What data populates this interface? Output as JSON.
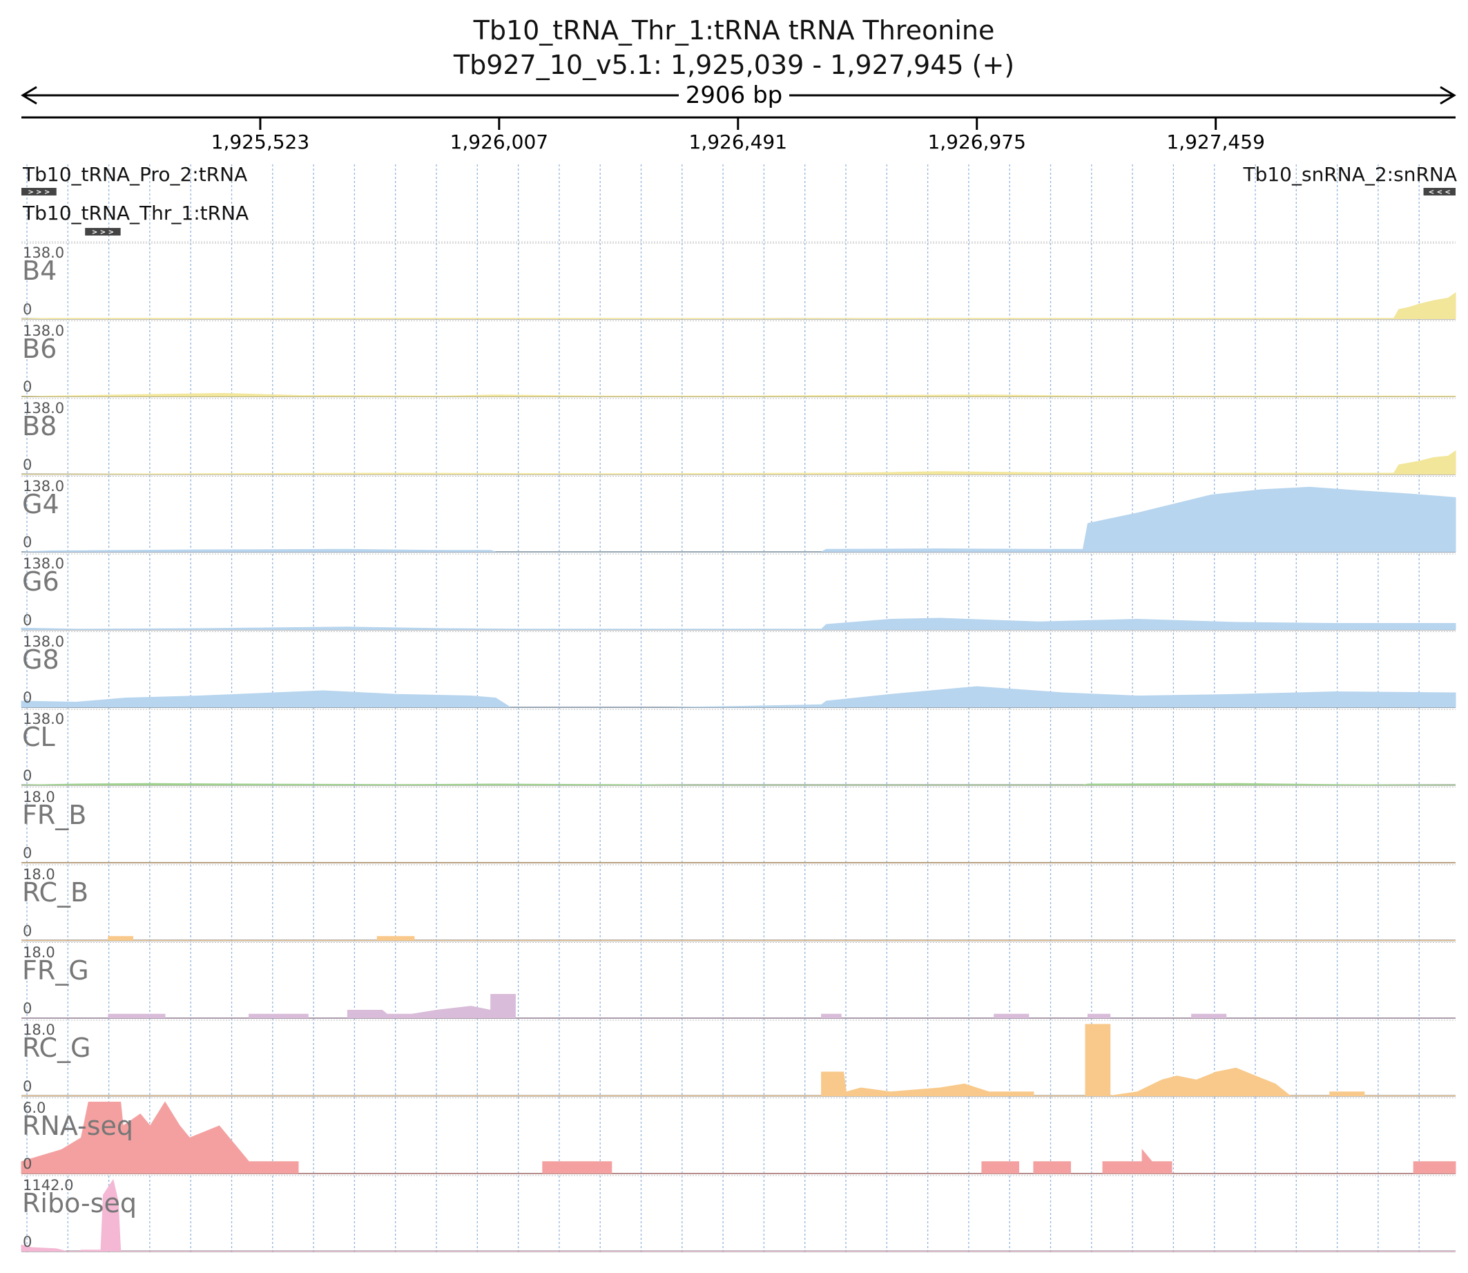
{
  "chart_data": {
    "type": "area",
    "title": "Tb10_tRNA_Thr_1:tRNA  tRNA Threonine",
    "subtitle": "Tb927_10_v5.1: 1,925,039 - 1,927,945 (+)",
    "span_label": "2906 bp",
    "xlim": [
      1925039,
      1927945
    ],
    "x_ticks": [
      "1,925,523",
      "1,926,007",
      "1,926,491",
      "1,926,975",
      "1,927,459"
    ],
    "x_tick_values": [
      1925523,
      1926007,
      1926491,
      1926975,
      1927459
    ],
    "grid": true,
    "features": [
      {
        "label": "Tb10_tRNA_Pro_2:tRNA",
        "start": 1925039,
        "end": 1925110,
        "strand": "+",
        "arrows": "> > >"
      },
      {
        "label": "Tb10_snRNA_2:snRNA",
        "start": 1927880,
        "end": 1927945,
        "strand": "-",
        "arrows": "< < <"
      },
      {
        "label": "Tb10_tRNA_Thr_1:tRNA",
        "start": 1925168,
        "end": 1925240,
        "strand": "+",
        "arrows": "> > >"
      }
    ],
    "tracks": [
      {
        "name": "B4",
        "max_label": "138.0",
        "min_label": "0",
        "ymax": 138,
        "color": "#f2e69a",
        "points": [
          [
            1925039,
            0
          ],
          [
            1925100,
            1
          ],
          [
            1925400,
            1
          ],
          [
            1925800,
            1
          ],
          [
            1926200,
            1
          ],
          [
            1926600,
            0.5
          ],
          [
            1927000,
            1
          ],
          [
            1927400,
            1
          ],
          [
            1927820,
            1
          ],
          [
            1927830,
            18
          ],
          [
            1927850,
            22
          ],
          [
            1927870,
            28
          ],
          [
            1927900,
            35
          ],
          [
            1927930,
            40
          ],
          [
            1927945,
            50
          ]
        ]
      },
      {
        "name": "B6",
        "max_label": "138.0",
        "min_label": "0",
        "ymax": 138,
        "color": "#f2e69a",
        "points": [
          [
            1925039,
            0
          ],
          [
            1925100,
            1
          ],
          [
            1925300,
            4
          ],
          [
            1925450,
            6
          ],
          [
            1925600,
            2
          ],
          [
            1925900,
            1
          ],
          [
            1926000,
            3
          ],
          [
            1926200,
            1
          ],
          [
            1926500,
            1
          ],
          [
            1926700,
            2
          ],
          [
            1927000,
            3
          ],
          [
            1927200,
            1
          ],
          [
            1927500,
            1
          ],
          [
            1927945,
            1
          ]
        ]
      },
      {
        "name": "B8",
        "max_label": "138.0",
        "min_label": "0",
        "ymax": 138,
        "color": "#f2e69a",
        "points": [
          [
            1925039,
            0
          ],
          [
            1925400,
            1
          ],
          [
            1925800,
            2
          ],
          [
            1926200,
            1
          ],
          [
            1926700,
            2
          ],
          [
            1926900,
            5
          ],
          [
            1927100,
            3
          ],
          [
            1927400,
            2
          ],
          [
            1927820,
            2
          ],
          [
            1927830,
            18
          ],
          [
            1927870,
            25
          ],
          [
            1927900,
            32
          ],
          [
            1927930,
            35
          ],
          [
            1927945,
            45
          ]
        ]
      },
      {
        "name": "G4",
        "max_label": "138.0",
        "min_label": "0",
        "ymax": 138,
        "color": "#b7d5ee",
        "points": [
          [
            1925039,
            0
          ],
          [
            1925100,
            2
          ],
          [
            1925400,
            4
          ],
          [
            1925700,
            5
          ],
          [
            1925900,
            3
          ],
          [
            1925990,
            3
          ],
          [
            1926000,
            0
          ],
          [
            1926660,
            0
          ],
          [
            1926670,
            5
          ],
          [
            1926900,
            6
          ],
          [
            1927100,
            5
          ],
          [
            1927190,
            5
          ],
          [
            1927200,
            55
          ],
          [
            1927300,
            75
          ],
          [
            1927450,
            110
          ],
          [
            1927550,
            120
          ],
          [
            1927650,
            125
          ],
          [
            1927750,
            118
          ],
          [
            1927850,
            112
          ],
          [
            1927945,
            105
          ]
        ]
      },
      {
        "name": "G6",
        "max_label": "138.0",
        "min_label": "0",
        "ymax": 138,
        "color": "#b7d5ee",
        "points": [
          [
            1925039,
            3
          ],
          [
            1925150,
            1
          ],
          [
            1925400,
            2
          ],
          [
            1925700,
            5
          ],
          [
            1925900,
            2
          ],
          [
            1926050,
            1
          ],
          [
            1926660,
            1
          ],
          [
            1926670,
            10
          ],
          [
            1926800,
            20
          ],
          [
            1926900,
            22
          ],
          [
            1927100,
            15
          ],
          [
            1927300,
            20
          ],
          [
            1927500,
            14
          ],
          [
            1927700,
            12
          ],
          [
            1927945,
            12
          ]
        ]
      },
      {
        "name": "G8",
        "max_label": "138.0",
        "min_label": "0",
        "ymax": 138,
        "color": "#b7d5ee",
        "points": [
          [
            1925039,
            12
          ],
          [
            1925150,
            10
          ],
          [
            1925250,
            18
          ],
          [
            1925400,
            22
          ],
          [
            1925600,
            30
          ],
          [
            1925650,
            32
          ],
          [
            1925800,
            25
          ],
          [
            1925950,
            22
          ],
          [
            1926000,
            18
          ],
          [
            1926030,
            0
          ],
          [
            1926350,
            0
          ],
          [
            1926500,
            2
          ],
          [
            1926660,
            5
          ],
          [
            1926670,
            12
          ],
          [
            1926800,
            25
          ],
          [
            1926975,
            40
          ],
          [
            1927150,
            28
          ],
          [
            1927300,
            22
          ],
          [
            1927500,
            25
          ],
          [
            1927700,
            30
          ],
          [
            1927945,
            28
          ]
        ]
      },
      {
        "name": "CL",
        "max_label": "138.0",
        "min_label": "0",
        "ymax": 138,
        "color": "#9ed08c",
        "points": [
          [
            1925039,
            0
          ],
          [
            1925150,
            2
          ],
          [
            1925300,
            3
          ],
          [
            1925500,
            2
          ],
          [
            1925800,
            1
          ],
          [
            1926000,
            2
          ],
          [
            1926250,
            1
          ],
          [
            1926400,
            0
          ],
          [
            1927190,
            0
          ],
          [
            1927200,
            2
          ],
          [
            1927500,
            3
          ],
          [
            1927700,
            1
          ],
          [
            1927945,
            0
          ]
        ]
      },
      {
        "name": "FR_B",
        "max_label": "18.0",
        "min_label": "0",
        "ymax": 18,
        "color": "#f8c98a",
        "points": [
          [
            1925039,
            0
          ],
          [
            1927945,
            0
          ]
        ]
      },
      {
        "name": "RC_B",
        "max_label": "18.0",
        "min_label": "0",
        "ymax": 18,
        "color": "#f8c98a",
        "points": [
          [
            1925039,
            0
          ],
          [
            1925215,
            0
          ],
          [
            1925215,
            1
          ],
          [
            1925265,
            1
          ],
          [
            1925265,
            0
          ],
          [
            1925760,
            0
          ],
          [
            1925760,
            1
          ],
          [
            1925835,
            1
          ],
          [
            1925835,
            0
          ],
          [
            1927945,
            0
          ]
        ]
      },
      {
        "name": "FR_G",
        "max_label": "18.0",
        "min_label": "0",
        "ymax": 18,
        "color": "#d9bcd9",
        "points": [
          [
            1925039,
            0
          ],
          [
            1925215,
            0
          ],
          [
            1925215,
            1
          ],
          [
            1925330,
            1
          ],
          [
            1925330,
            0
          ],
          [
            1925500,
            0
          ],
          [
            1925500,
            1
          ],
          [
            1925620,
            1
          ],
          [
            1925620,
            0
          ],
          [
            1925700,
            0
          ],
          [
            1925700,
            2
          ],
          [
            1925770,
            2
          ],
          [
            1925780,
            1
          ],
          [
            1925830,
            1
          ],
          [
            1925880,
            2
          ],
          [
            1925950,
            3
          ],
          [
            1925990,
            2
          ],
          [
            1925990,
            6
          ],
          [
            1926040,
            6
          ],
          [
            1926040,
            0
          ],
          [
            1926660,
            0
          ],
          [
            1926660,
            1
          ],
          [
            1926700,
            1
          ],
          [
            1926700,
            0
          ],
          [
            1927010,
            0
          ],
          [
            1927010,
            1
          ],
          [
            1927080,
            1
          ],
          [
            1927080,
            0
          ],
          [
            1927200,
            0
          ],
          [
            1927200,
            1
          ],
          [
            1927245,
            1
          ],
          [
            1927245,
            0
          ],
          [
            1927410,
            0
          ],
          [
            1927410,
            1
          ],
          [
            1927480,
            1
          ],
          [
            1927480,
            0
          ],
          [
            1927945,
            0
          ]
        ]
      },
      {
        "name": "RC_G",
        "max_label": "18.0",
        "min_label": "0",
        "ymax": 18,
        "color": "#f8c98a",
        "points": [
          [
            1925039,
            0
          ],
          [
            1926660,
            0
          ],
          [
            1926660,
            6
          ],
          [
            1926705,
            6
          ],
          [
            1926710,
            1
          ],
          [
            1926740,
            2
          ],
          [
            1926800,
            1
          ],
          [
            1926900,
            2
          ],
          [
            1926950,
            3
          ],
          [
            1927000,
            1
          ],
          [
            1927090,
            1
          ],
          [
            1927090,
            0
          ],
          [
            1927195,
            0
          ],
          [
            1927195,
            18
          ],
          [
            1927245,
            18
          ],
          [
            1927245,
            0
          ],
          [
            1927300,
            1
          ],
          [
            1927350,
            4
          ],
          [
            1927380,
            5
          ],
          [
            1927420,
            4
          ],
          [
            1927460,
            6
          ],
          [
            1927500,
            7
          ],
          [
            1927540,
            5
          ],
          [
            1927580,
            3
          ],
          [
            1927600,
            1
          ],
          [
            1927610,
            0
          ],
          [
            1927690,
            0
          ],
          [
            1927690,
            1
          ],
          [
            1927760,
            1
          ],
          [
            1927760,
            0
          ],
          [
            1927945,
            0
          ]
        ]
      },
      {
        "name": "RNA-seq",
        "max_label": "6.0",
        "min_label": "0",
        "ymax": 6,
        "color": "#f4a0a0",
        "points": [
          [
            1925039,
            1
          ],
          [
            1925120,
            2
          ],
          [
            1925160,
            3
          ],
          [
            1925175,
            6
          ],
          [
            1925240,
            6
          ],
          [
            1925245,
            4
          ],
          [
            1925280,
            5
          ],
          [
            1925300,
            4
          ],
          [
            1925330,
            6
          ],
          [
            1925360,
            4
          ],
          [
            1925380,
            3
          ],
          [
            1925440,
            4
          ],
          [
            1925460,
            3
          ],
          [
            1925480,
            2
          ],
          [
            1925500,
            1
          ],
          [
            1925600,
            1
          ],
          [
            1925600,
            0
          ],
          [
            1926095,
            0
          ],
          [
            1926095,
            1
          ],
          [
            1926235,
            1
          ],
          [
            1926235,
            0
          ],
          [
            1926985,
            0
          ],
          [
            1926985,
            1
          ],
          [
            1927060,
            1
          ],
          [
            1927060,
            0
          ],
          [
            1927090,
            0
          ],
          [
            1927090,
            1
          ],
          [
            1927165,
            1
          ],
          [
            1927165,
            0
          ],
          [
            1927230,
            0
          ],
          [
            1927230,
            1
          ],
          [
            1927310,
            1
          ],
          [
            1927310,
            2
          ],
          [
            1927330,
            1
          ],
          [
            1927370,
            1
          ],
          [
            1927370,
            0
          ],
          [
            1927860,
            0
          ],
          [
            1927860,
            1
          ],
          [
            1927935,
            1
          ],
          [
            1927945,
            1
          ]
        ]
      },
      {
        "name": "Ribo-seq",
        "max_label": "1142.0",
        "min_label": "0",
        "ymax": 1142,
        "color": "#f4b8d4",
        "points": [
          [
            1925039,
            100
          ],
          [
            1925060,
            60
          ],
          [
            1925110,
            40
          ],
          [
            1925130,
            0
          ],
          [
            1925160,
            0
          ],
          [
            1925160,
            20
          ],
          [
            1925200,
            20
          ],
          [
            1925205,
            900
          ],
          [
            1925225,
            1142
          ],
          [
            1925235,
            800
          ],
          [
            1925240,
            0
          ],
          [
            1927945,
            0
          ]
        ]
      }
    ]
  }
}
